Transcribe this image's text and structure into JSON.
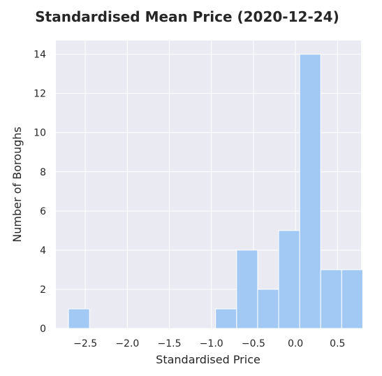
{
  "chart_data": {
    "type": "bar",
    "title": "Standardised Mean Price (2020-12-24)",
    "xlabel": "Standardised Price",
    "ylabel": "Number of Boroughs",
    "xlim": [
      -2.85,
      0.78
    ],
    "ylim": [
      0,
      14.7
    ],
    "grid": true,
    "bin_width": 0.25,
    "bins": [
      {
        "left": -2.7,
        "count": 1
      },
      {
        "left": -2.45,
        "count": 0
      },
      {
        "left": -2.2,
        "count": 0
      },
      {
        "left": -1.95,
        "count": 0
      },
      {
        "left": -1.7,
        "count": 0
      },
      {
        "left": -1.45,
        "count": 0
      },
      {
        "left": -1.2,
        "count": 0
      },
      {
        "left": -0.95,
        "count": 1
      },
      {
        "left": -0.7,
        "count": 4
      },
      {
        "left": -0.45,
        "count": 2
      },
      {
        "left": -0.2,
        "count": 5
      },
      {
        "left": 0.05,
        "count": 14
      },
      {
        "left": 0.3,
        "count": 3
      },
      {
        "left": 0.55,
        "count": 3
      }
    ],
    "xticks": [
      {
        "value": -2.5,
        "label": "−2.5"
      },
      {
        "value": -2.0,
        "label": "−2.0"
      },
      {
        "value": -1.5,
        "label": "−1.5"
      },
      {
        "value": -1.0,
        "label": "−1.0"
      },
      {
        "value": -0.5,
        "label": "−0.5"
      },
      {
        "value": 0.0,
        "label": "0.0"
      },
      {
        "value": 0.5,
        "label": "0.5"
      }
    ],
    "yticks": [
      {
        "value": 0,
        "label": "0"
      },
      {
        "value": 2,
        "label": "2"
      },
      {
        "value": 4,
        "label": "4"
      },
      {
        "value": 6,
        "label": "6"
      },
      {
        "value": 8,
        "label": "8"
      },
      {
        "value": 10,
        "label": "10"
      },
      {
        "value": 12,
        "label": "12"
      },
      {
        "value": 14,
        "label": "14"
      }
    ],
    "colors": {
      "plot_background": "#eaeaf2",
      "grid": "#ffffff",
      "bar_fill": "#a1c9f4",
      "bar_edge": "#ffffff"
    }
  }
}
